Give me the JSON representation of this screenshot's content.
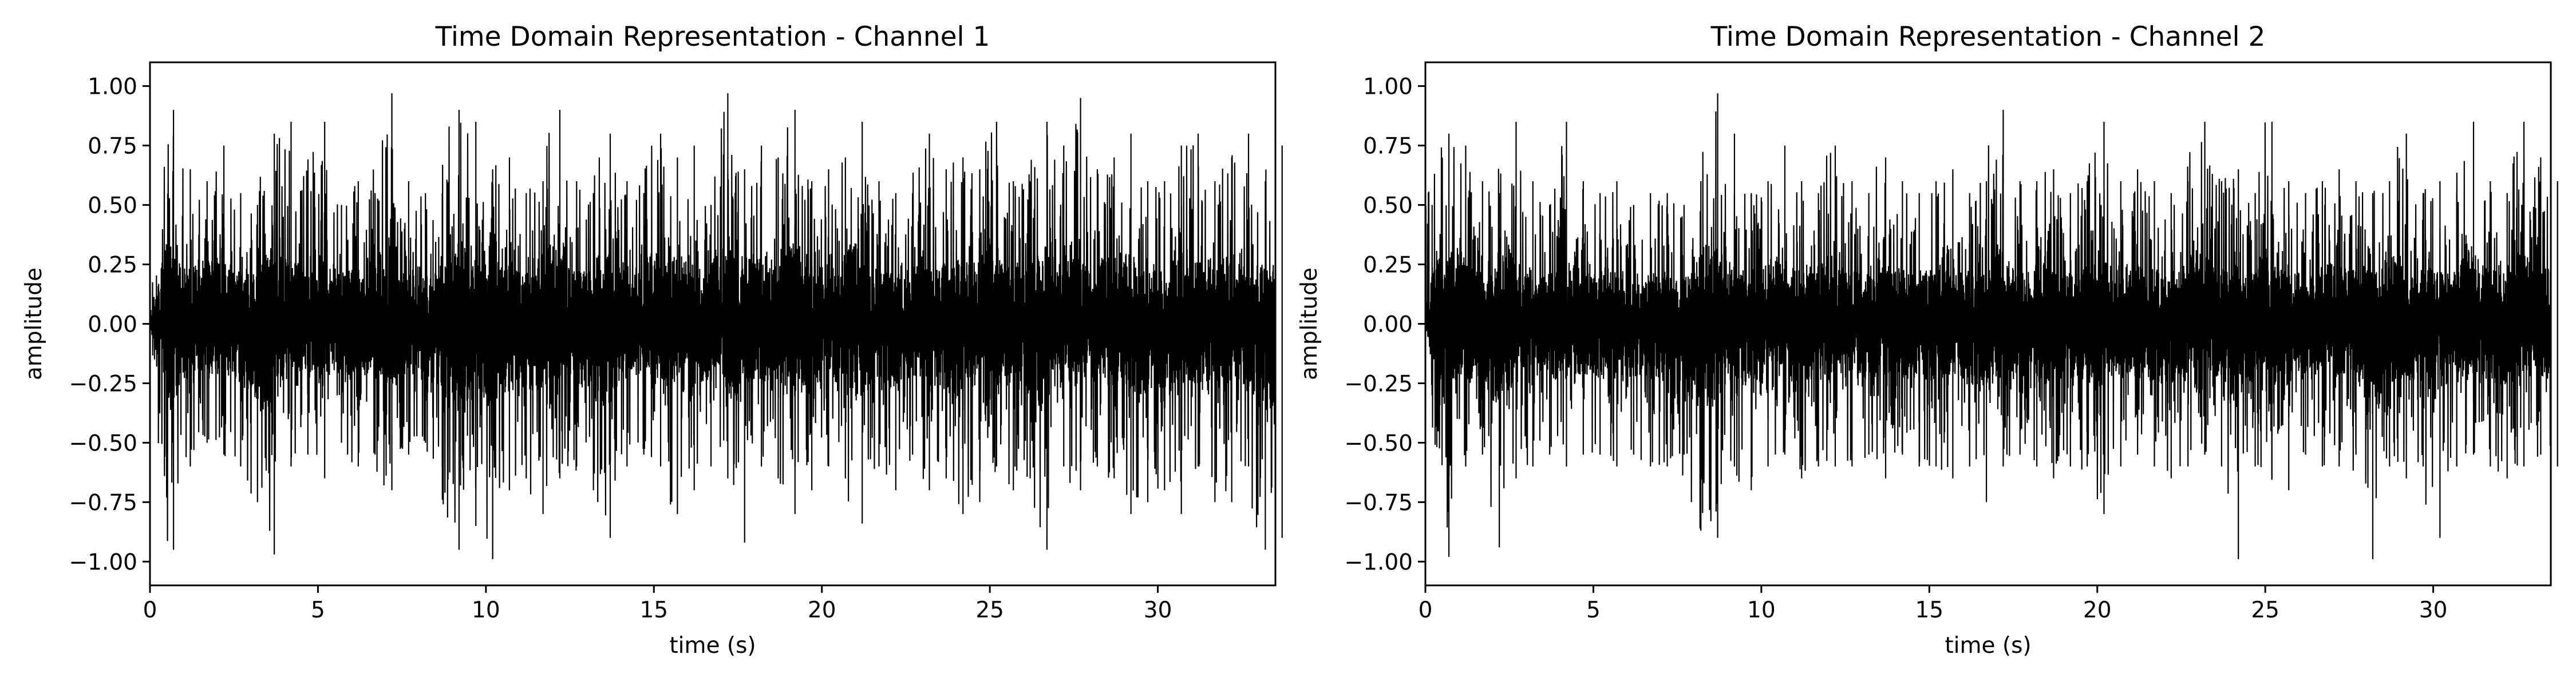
{
  "chart_data": [
    {
      "type": "line",
      "title": "Time Domain Representation - Channel 1",
      "xlabel": "time (s)",
      "ylabel": "amplitude",
      "xlim": [
        0,
        33.5
      ],
      "ylim": [
        -1.1,
        1.1
      ],
      "x_ticks": [
        0,
        5,
        10,
        15,
        20,
        25,
        30
      ],
      "x_tick_labels": [
        "0",
        "5",
        "10",
        "15",
        "20",
        "25",
        "30"
      ],
      "y_ticks": [
        1.0,
        0.75,
        0.5,
        0.25,
        0.0,
        -0.25,
        -0.5,
        -0.75,
        -1.0
      ],
      "y_tick_labels": [
        "1.00",
        "0.75",
        "0.50",
        "0.25",
        "0.00",
        "−0.25",
        "−0.50",
        "−0.75",
        "−1.00"
      ],
      "grid": false,
      "line_color": "#000000",
      "series": [
        {
          "x": [
            0.0,
            0.5,
            1.0,
            1.5,
            2.0,
            2.5,
            3.0,
            3.5,
            4.0,
            4.5,
            5.0,
            5.5,
            6.0,
            6.5,
            7.0,
            7.5,
            8.0,
            8.5,
            9.0,
            9.5,
            10.0,
            10.5,
            11.0,
            11.5,
            12.0,
            12.5,
            13.0,
            13.5,
            14.0,
            14.5,
            15.0,
            15.5,
            16.0,
            16.5,
            17.0,
            17.5,
            18.0,
            18.5,
            19.0,
            19.5,
            20.0,
            20.5,
            21.0,
            21.5,
            22.0,
            22.5,
            23.0,
            23.5,
            24.0,
            24.5,
            25.0,
            25.5,
            26.0,
            26.5,
            27.0,
            27.5,
            28.0,
            28.5,
            29.0,
            29.5,
            30.0,
            30.5,
            31.0,
            31.5,
            32.0,
            32.5,
            33.0,
            33.5
          ],
          "upper": [
            0.05,
            0.9,
            0.65,
            0.6,
            0.75,
            0.55,
            0.5,
            0.8,
            0.85,
            0.6,
            0.85,
            0.5,
            0.6,
            0.55,
            0.97,
            0.6,
            0.55,
            0.55,
            0.9,
            0.85,
            0.65,
            0.7,
            0.55,
            0.6,
            0.9,
            0.6,
            0.55,
            0.8,
            0.6,
            0.55,
            0.8,
            0.7,
            0.75,
            0.5,
            0.97,
            0.65,
            0.75,
            0.7,
            0.9,
            0.6,
            0.65,
            0.7,
            0.85,
            0.6,
            0.55,
            0.55,
            0.8,
            0.65,
            0.7,
            0.65,
            0.85,
            0.6,
            0.6,
            0.85,
            0.75,
            0.95,
            0.65,
            0.7,
            0.8,
            0.6,
            0.6,
            0.75,
            0.8,
            0.6,
            0.7,
            0.8,
            0.6,
            0.75
          ],
          "lower": [
            -0.05,
            -0.95,
            -0.6,
            -0.5,
            -0.55,
            -0.6,
            -0.75,
            -0.97,
            -0.6,
            -0.55,
            -0.65,
            -0.5,
            -0.6,
            -0.55,
            -0.7,
            -0.55,
            -0.5,
            -0.6,
            -0.95,
            -0.85,
            -0.99,
            -0.7,
            -0.65,
            -0.8,
            -0.65,
            -0.6,
            -0.7,
            -0.9,
            -0.6,
            -0.55,
            -0.6,
            -0.8,
            -0.7,
            -0.6,
            -0.65,
            -0.92,
            -0.6,
            -0.65,
            -0.8,
            -0.7,
            -0.6,
            -0.65,
            -0.84,
            -0.6,
            -0.7,
            -0.55,
            -0.7,
            -0.65,
            -0.8,
            -0.75,
            -0.6,
            -0.7,
            -0.65,
            -0.95,
            -0.6,
            -0.7,
            -0.6,
            -0.65,
            -0.8,
            -0.75,
            -0.7,
            -0.8,
            -0.6,
            -0.75,
            -0.75,
            -0.6,
            -0.95,
            -0.9
          ]
        }
      ]
    },
    {
      "type": "line",
      "title": "Time Domain Representation - Channel 2",
      "xlabel": "time (s)",
      "ylabel": "amplitude",
      "xlim": [
        0,
        33.5
      ],
      "ylim": [
        -1.1,
        1.1
      ],
      "x_ticks": [
        0,
        5,
        10,
        15,
        20,
        25,
        30
      ],
      "x_tick_labels": [
        "0",
        "5",
        "10",
        "15",
        "20",
        "25",
        "30"
      ],
      "y_ticks": [
        1.0,
        0.75,
        0.5,
        0.25,
        0.0,
        -0.25,
        -0.5,
        -0.75,
        -1.0
      ],
      "y_tick_labels": [
        "1.00",
        "0.75",
        "0.50",
        "0.25",
        "0.00",
        "−0.25",
        "−0.50",
        "−0.75",
        "−1.00"
      ],
      "grid": false,
      "line_color": "#000000",
      "series": [
        {
          "x": [
            0.0,
            0.5,
            1.0,
            1.5,
            2.0,
            2.5,
            3.0,
            3.5,
            4.0,
            4.5,
            5.0,
            5.5,
            6.0,
            6.5,
            7.0,
            7.5,
            8.0,
            8.5,
            9.0,
            9.5,
            10.0,
            10.5,
            11.0,
            11.5,
            12.0,
            12.5,
            13.0,
            13.5,
            14.0,
            14.5,
            15.0,
            15.5,
            16.0,
            16.5,
            17.0,
            17.5,
            18.0,
            18.5,
            19.0,
            19.5,
            20.0,
            20.5,
            21.0,
            21.5,
            22.0,
            22.5,
            23.0,
            23.5,
            24.0,
            24.5,
            25.0,
            25.5,
            26.0,
            26.5,
            27.0,
            27.5,
            28.0,
            28.5,
            29.0,
            29.5,
            30.0,
            30.5,
            31.0,
            31.5,
            32.0,
            32.5,
            33.0,
            33.5
          ],
          "upper": [
            0.5,
            0.8,
            0.75,
            0.6,
            0.55,
            0.85,
            0.6,
            0.5,
            0.85,
            0.6,
            0.55,
            0.6,
            0.5,
            0.55,
            0.55,
            0.5,
            0.6,
            0.97,
            0.8,
            0.55,
            0.6,
            0.75,
            0.6,
            0.55,
            0.75,
            0.6,
            0.55,
            0.7,
            0.6,
            0.55,
            0.6,
            0.65,
            0.55,
            0.6,
            0.9,
            0.6,
            0.6,
            0.65,
            0.55,
            0.6,
            0.85,
            0.6,
            0.65,
            0.6,
            0.55,
            0.6,
            0.85,
            0.6,
            0.65,
            0.55,
            0.85,
            0.6,
            0.55,
            0.6,
            0.65,
            0.6,
            0.55,
            0.6,
            0.8,
            0.55,
            0.6,
            0.55,
            0.85,
            0.6,
            0.55,
            0.85,
            0.7,
            0.6
          ],
          "lower": [
            -0.05,
            -0.98,
            -0.6,
            -0.55,
            -0.94,
            -0.65,
            -0.6,
            -0.55,
            -0.6,
            -0.55,
            -0.55,
            -0.6,
            -0.55,
            -0.6,
            -0.6,
            -0.55,
            -0.87,
            -0.9,
            -0.6,
            -0.7,
            -0.6,
            -0.55,
            -0.65,
            -0.6,
            -0.6,
            -0.6,
            -0.55,
            -0.65,
            -0.55,
            -0.6,
            -0.6,
            -0.65,
            -0.6,
            -0.75,
            -0.6,
            -0.55,
            -0.6,
            -0.65,
            -0.6,
            -0.6,
            -0.8,
            -0.6,
            -0.55,
            -0.6,
            -0.65,
            -0.6,
            -0.55,
            -0.6,
            -0.99,
            -0.6,
            -0.65,
            -0.7,
            -0.55,
            -0.6,
            -0.6,
            -0.55,
            -0.99,
            -0.6,
            -0.65,
            -0.6,
            -0.9,
            -0.6,
            -0.55,
            -0.6,
            -0.65,
            -0.6,
            -0.55,
            -0.6
          ]
        }
      ]
    }
  ]
}
